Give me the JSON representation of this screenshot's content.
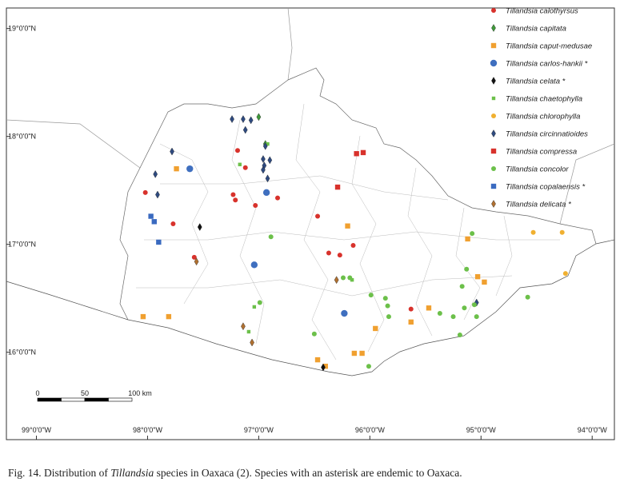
{
  "map": {
    "lonlim": [
      -99.27,
      -93.8
    ],
    "latlim": [
      15.19,
      19.19
    ],
    "lonticks": [
      {
        "value": -99,
        "label": "99°0'0\"W"
      },
      {
        "value": -98,
        "label": "98°0'0\"W"
      },
      {
        "value": -97,
        "label": "97°0'0\"W"
      },
      {
        "value": -96,
        "label": "96°0'0\"W"
      },
      {
        "value": -95,
        "label": "95°0'0\"W"
      },
      {
        "value": -94,
        "label": "94°0'0\"W"
      }
    ],
    "latticks": [
      {
        "value": 19,
        "label": "19°0'0\"N"
      },
      {
        "value": 18,
        "label": "18°0'0\"N"
      },
      {
        "value": 17,
        "label": "17°0'0\"N"
      },
      {
        "value": 16,
        "label": "16°0'0\"N"
      }
    ],
    "scale_bar": [
      0,
      50,
      {
        "value": 100,
        "label": "100 km"
      }
    ],
    "species": [
      {
        "name": "Tillandsia calothyrsus",
        "marker": "circle",
        "color": "#d8322c",
        "lon": [
          -97.19,
          -97.12,
          -98.02,
          -97.23,
          -97.21,
          -97.03,
          -96.83,
          -97.77,
          -97.58,
          -96.47,
          -96.37,
          -96.27,
          -96.15,
          -95.63
        ],
        "lat": [
          17.87,
          17.71,
          17.48,
          17.46,
          17.41,
          17.36,
          17.43,
          17.19,
          16.88,
          17.26,
          16.92,
          16.9,
          16.99,
          16.4
        ]
      },
      {
        "name": "Tillandsia capitata",
        "marker": "diamond",
        "color": "#3f9a3a",
        "lon": [
          -97.0,
          -96.94
        ],
        "lat": [
          18.18,
          17.93
        ]
      },
      {
        "name": "Tillandsia caput-medusae",
        "marker": "square",
        "color": "#f0a030",
        "lon": [
          -97.74,
          -96.2,
          -98.04,
          -97.81,
          -95.12,
          -95.03,
          -94.97,
          -95.95,
          -95.47,
          -95.63,
          -96.47,
          -96.14,
          -96.07,
          -96.4
        ],
        "lat": [
          17.7,
          17.17,
          16.33,
          16.33,
          17.05,
          16.7,
          16.65,
          16.22,
          16.41,
          16.28,
          15.93,
          15.99,
          15.99,
          15.87
        ]
      },
      {
        "name": "Tillandsia carlos-hankii *",
        "marker": "bigcircle",
        "color": "#3f6fbf",
        "lon": [
          -97.62,
          -96.93,
          -97.04,
          -96.23
        ],
        "lat": [
          17.7,
          17.48,
          16.81,
          16.36
        ]
      },
      {
        "name": "Tillandsia celata *",
        "marker": "diamond",
        "color": "#111111",
        "lon": [
          -97.53,
          -96.42
        ],
        "lat": [
          17.16,
          15.86
        ]
      },
      {
        "name": "Tillandsia chaetophylla",
        "marker": "smallsquare",
        "color": "#6cc04a",
        "lon": [
          -97.17,
          -97.04,
          -96.92,
          -97.09,
          -96.16
        ],
        "lat": [
          17.74,
          16.42,
          17.93,
          16.19,
          16.67
        ]
      },
      {
        "name": "Tillandsia chlorophylla",
        "marker": "circle",
        "color": "#f0b030",
        "lon": [
          -94.53,
          -94.27,
          -94.24
        ],
        "lat": [
          17.11,
          17.11,
          16.73
        ]
      },
      {
        "name": "Tillandsia circinnatioides",
        "marker": "diamond",
        "color": "#2e4a80",
        "lon": [
          -97.24,
          -97.14,
          -97.07,
          -97.12,
          -97.78,
          -97.93,
          -97.91,
          -96.94,
          -96.96,
          -96.95,
          -96.96,
          -96.9,
          -96.92,
          -95.04
        ],
        "lat": [
          18.16,
          18.16,
          18.15,
          18.06,
          17.86,
          17.65,
          17.46,
          17.91,
          17.79,
          17.73,
          17.69,
          17.78,
          17.61,
          16.46
        ]
      },
      {
        "name": "Tillandsia compressa",
        "marker": "square",
        "color": "#d8322c",
        "lon": [
          -96.12,
          -96.06,
          -96.29
        ],
        "lat": [
          17.84,
          17.85,
          17.53
        ]
      },
      {
        "name": "Tillandsia concolor",
        "marker": "circle",
        "color": "#6cc04a",
        "lon": [
          -96.89,
          -96.99,
          -96.24,
          -96.18,
          -95.99,
          -95.86,
          -95.84,
          -95.83,
          -95.37,
          -95.25,
          -95.15,
          -95.06,
          -95.04,
          -95.17,
          -95.13,
          -95.08,
          -94.58,
          -96.01,
          -96.5,
          -95.19
        ],
        "lat": [
          17.07,
          16.46,
          16.69,
          16.69,
          16.53,
          16.5,
          16.43,
          16.33,
          16.36,
          16.33,
          16.41,
          16.44,
          16.33,
          16.61,
          16.77,
          17.1,
          16.51,
          15.87,
          16.17,
          16.16
        ]
      },
      {
        "name": "Tillandsia copalaensis *",
        "marker": "square",
        "color": "#3a6ac0",
        "lon": [
          -97.97,
          -97.94,
          -97.9
        ],
        "lat": [
          17.26,
          17.21,
          17.02
        ]
      },
      {
        "name": "Tillandsia delicata *",
        "marker": "diamond",
        "color": "#b07030",
        "lon": [
          -97.56,
          -96.3,
          -97.14,
          -97.06
        ],
        "lat": [
          16.84,
          16.67,
          16.24,
          16.09
        ]
      }
    ]
  },
  "caption": [
    "Fig. 14. Distribution of ",
    "Tillandsia",
    " species in Oaxaca (2). Species with an asterisk are endemic to Oaxaca."
  ]
}
